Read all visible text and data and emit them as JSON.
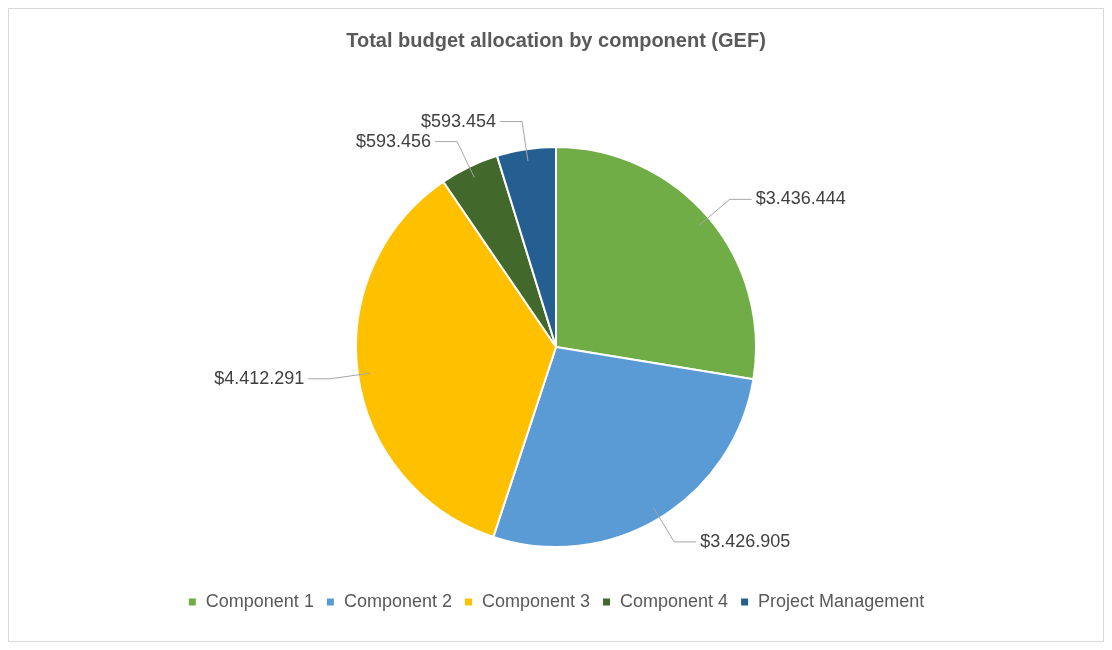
{
  "chart_data": {
    "type": "pie",
    "title": "Total budget allocation by component (GEF)",
    "categories": [
      "Component 1",
      "Component 2",
      "Component 3",
      "Component 4",
      "Project Management"
    ],
    "values": [
      3436444,
      3426905,
      4412291,
      593456,
      593454
    ],
    "value_labels": [
      "$3.436.444",
      "$3.426.905",
      "$4.412.291",
      "$593.456",
      "$593.454"
    ],
    "colors": [
      "#70ad47",
      "#5b9bd5",
      "#ffc000",
      "#43682b",
      "#255e91"
    ],
    "legend": "bottom"
  }
}
